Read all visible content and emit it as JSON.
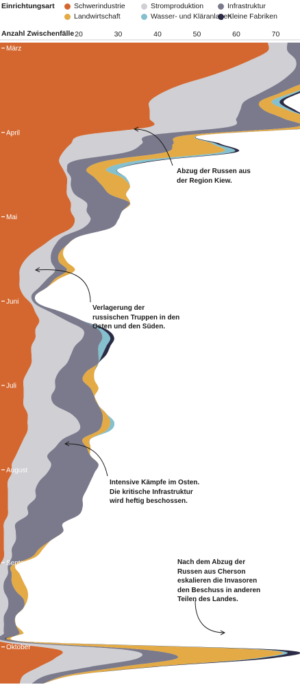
{
  "legend": {
    "title": "Einrichtungsart",
    "items": [
      {
        "label": "Schwerindustrie",
        "color": "#d4672f"
      },
      {
        "label": "Stromproduktion",
        "color": "#cfcfd4"
      },
      {
        "label": "Infrastruktur",
        "color": "#7a7a8c"
      },
      {
        "label": "Landwirtschaft",
        "color": "#e3aa45"
      },
      {
        "label": "Wasser- und Kläranlagen",
        "color": "#84c0ce"
      },
      {
        "label": "Kleine Fabriken",
        "color": "#2b2b45"
      }
    ]
  },
  "chart_data": {
    "type": "area",
    "orientation": "vertical-stacked",
    "xlabel": "Anzahl Zwischenfälle",
    "xticks": [
      20,
      30,
      40,
      50,
      60,
      70
    ],
    "xlim": [
      0,
      76
    ],
    "months": [
      "März",
      "April",
      "Mai",
      "Juni",
      "Juli",
      "August",
      "September",
      "Oktober"
    ],
    "week_index": [
      0,
      1,
      2,
      3,
      4,
      5,
      6,
      7,
      8,
      9,
      10,
      11,
      12,
      13,
      14,
      15,
      16,
      17,
      18,
      19,
      20,
      21,
      22,
      23,
      24,
      25,
      26,
      27,
      28,
      29,
      30,
      31,
      32,
      33,
      34,
      35,
      36,
      37,
      38,
      39,
      40,
      41,
      42,
      43,
      44,
      45,
      46,
      47,
      48,
      49,
      50,
      51,
      52,
      53,
      54,
      55,
      56,
      57,
      58,
      59,
      60,
      61,
      62,
      63,
      64,
      65,
      66,
      67,
      68,
      69,
      70,
      71,
      72,
      73,
      74,
      75,
      76
    ],
    "month_start_index": [
      0,
      10,
      20,
      30,
      40,
      50,
      61,
      71
    ],
    "series": [
      {
        "name": "Schwerindustrie",
        "values": [
          68,
          68,
          64,
          59,
          53,
          46,
          41,
          38,
          38,
          38,
          38,
          21,
          18,
          16,
          15,
          16,
          17,
          17,
          17,
          18,
          18,
          19,
          18,
          14,
          11,
          8,
          6,
          5,
          5,
          5,
          6,
          8,
          9,
          10,
          9,
          9,
          8,
          8,
          8,
          7,
          6,
          6,
          6,
          6,
          7,
          7,
          7,
          6,
          5,
          4,
          3,
          3,
          2,
          2,
          2,
          2,
          2,
          1,
          1,
          1,
          1,
          1,
          0,
          0,
          0,
          0,
          0,
          0,
          0,
          0,
          0,
          0,
          15,
          14,
          10,
          6,
          5
        ]
      },
      {
        "name": "Stromproduktion",
        "values": [
          5,
          5,
          11,
          16,
          20,
          24,
          25,
          24,
          23,
          22,
          20,
          17,
          18,
          16,
          4,
          1,
          1,
          1,
          2,
          4,
          4,
          4,
          3,
          2,
          3,
          5,
          7,
          9,
          7,
          5,
          2,
          1,
          4,
          7,
          12,
          12,
          11,
          10,
          9,
          8,
          8,
          8,
          7,
          8,
          11,
          13,
          13,
          10,
          9,
          8,
          10,
          9,
          8,
          7,
          7,
          5,
          5,
          3,
          3,
          3,
          2,
          2,
          2,
          2,
          1,
          1,
          2,
          2,
          1,
          1,
          1,
          2,
          17,
          21,
          13,
          6,
          3
        ]
      },
      {
        "name": "Infrastruktur",
        "values": [
          25,
          25,
          18,
          13,
          10,
          6,
          5,
          4,
          6,
          12,
          17,
          9,
          8,
          10,
          8,
          5,
          6,
          8,
          9,
          11,
          9,
          7,
          7,
          4,
          3,
          2,
          2,
          3,
          2,
          2,
          1,
          1,
          3,
          4,
          4,
          5,
          6,
          7,
          8,
          7,
          7,
          9,
          11,
          11,
          8,
          6,
          5,
          5,
          8,
          11,
          12,
          12,
          13,
          13,
          12,
          14,
          13,
          12,
          12,
          9,
          7,
          5,
          1,
          1,
          2,
          3,
          4,
          4,
          3,
          3,
          4,
          3,
          5,
          10,
          8,
          5,
          3
        ]
      },
      {
        "name": "Landwirtschaft",
        "values": [
          0,
          3,
          10,
          15,
          12,
          5,
          3,
          3,
          6,
          7,
          7,
          4,
          10,
          14,
          8,
          5,
          7,
          7,
          4,
          0,
          0,
          0,
          0,
          0,
          0,
          1,
          2,
          2,
          1,
          0,
          0,
          0,
          0,
          0,
          0,
          0,
          0,
          0,
          0,
          2,
          3,
          2,
          0,
          0,
          1,
          2,
          2,
          2,
          1,
          0,
          0,
          0,
          0,
          0,
          0,
          0,
          0,
          0,
          0,
          0,
          1,
          1,
          1,
          2,
          3,
          3,
          1,
          0,
          0,
          0,
          1,
          1,
          30,
          20,
          8,
          2,
          0
        ]
      },
      {
        "name": "Wasser- und Kläranlagen",
        "values": [
          0,
          0,
          0,
          0,
          0,
          0,
          1,
          2,
          1,
          0,
          0,
          0,
          1,
          3,
          4,
          3,
          1,
          0,
          0,
          0,
          0,
          0,
          0,
          0,
          0,
          0,
          0,
          0,
          0,
          0,
          0,
          0,
          0,
          0,
          1,
          2,
          2,
          1,
          0,
          0,
          0,
          0,
          0,
          0,
          0,
          1,
          1,
          0,
          0,
          0,
          0,
          0,
          0,
          0,
          0,
          0,
          0,
          0,
          0,
          0,
          0,
          0,
          0,
          0,
          0,
          0,
          0,
          0,
          0,
          0,
          0,
          0,
          1,
          1,
          0,
          0,
          0
        ]
      },
      {
        "name": "Kleine Fabriken",
        "values": [
          1,
          1,
          1,
          1,
          1,
          1,
          1,
          1,
          1,
          0,
          1,
          0,
          1,
          1,
          1,
          0,
          0,
          0,
          0,
          0,
          0,
          0,
          0,
          0,
          0,
          0,
          0,
          0,
          0,
          0,
          0,
          0,
          0,
          0,
          1,
          1,
          1,
          1,
          0,
          0,
          0,
          0,
          0,
          0,
          0,
          0,
          0,
          0,
          0,
          0,
          0,
          0,
          0,
          0,
          0,
          0,
          0,
          0,
          0,
          0,
          0,
          0,
          0,
          0,
          0,
          0,
          0,
          0,
          0,
          0,
          0,
          0,
          3,
          3,
          1,
          0,
          0
        ]
      }
    ],
    "annotations": [
      {
        "text": "Abzug der Russen aus\nder Region Kiew."
      },
      {
        "text": "Verlagerung der\nrussischen Truppen in den\nOsten und den Süden."
      },
      {
        "text": "Intensive Kämpfe im Osten.\nDie kritische Infrastruktur\nwird heftig beschossen."
      },
      {
        "text": "Nach dem Abzug der\nRussen aus Cherson\neskalieren die Invasoren\nden Beschuss in anderen\nTeilen des Landes."
      }
    ]
  }
}
